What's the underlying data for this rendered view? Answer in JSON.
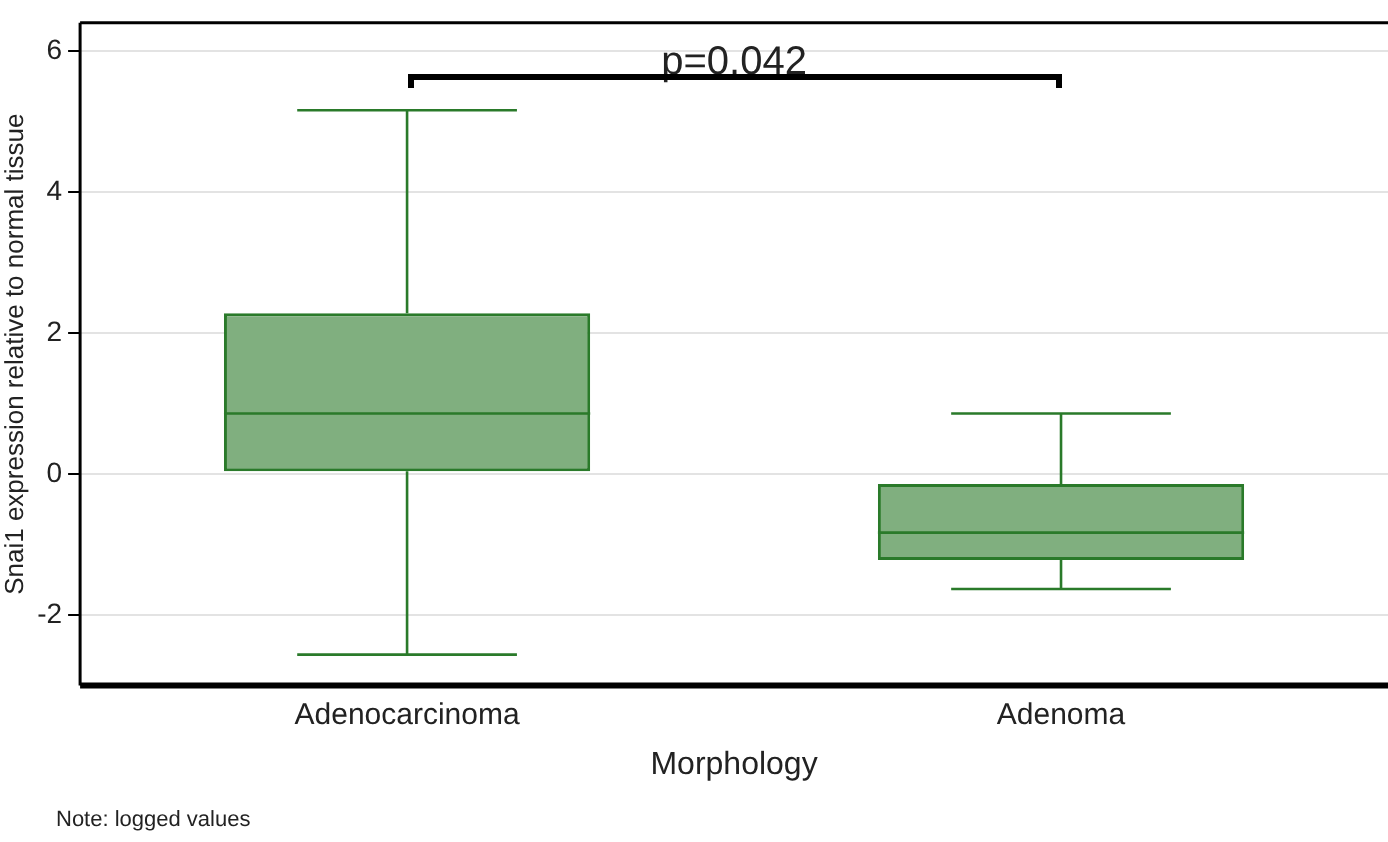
{
  "chart_data": {
    "type": "box",
    "categories": [
      "Adenocarcinoma",
      "Adenoma"
    ],
    "boxes": [
      {
        "low": -2.56,
        "q1": 0.04,
        "median": 0.86,
        "q3": 2.28,
        "high": 5.16
      },
      {
        "low": -1.63,
        "q1": -1.22,
        "median": -0.83,
        "q3": -0.14,
        "high": 0.86
      }
    ],
    "color": "#80af7f",
    "xlabel": "Morphology",
    "ylabel": "Snai1 expression relative to normal tissue",
    "ylim": [
      -3,
      6.4
    ],
    "yticks": [
      -2,
      0,
      2,
      4,
      6
    ],
    "grid": "y",
    "annotations": [
      "p=0.042",
      "Note: logged values"
    ]
  }
}
